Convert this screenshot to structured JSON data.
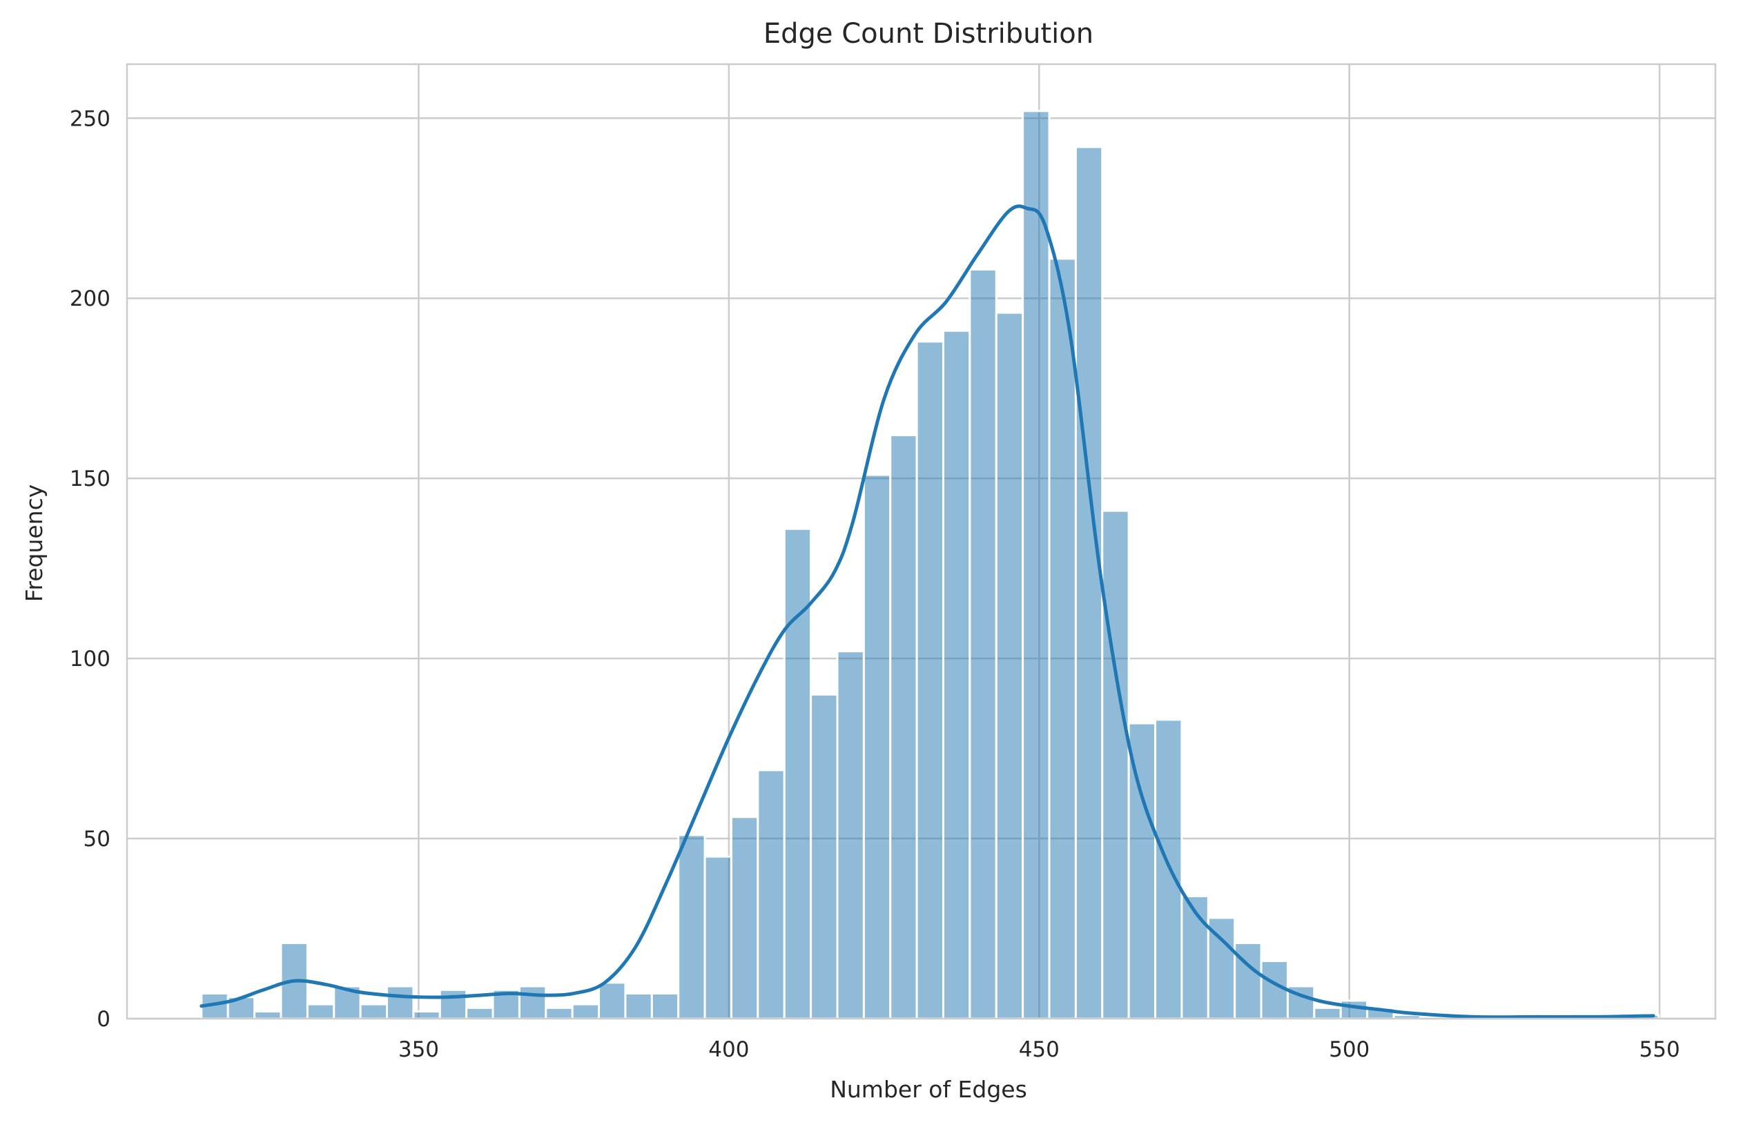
{
  "chart_data": {
    "type": "bar",
    "title": "Edge Count Distribution",
    "xlabel": "Number of Edges",
    "ylabel": "Frequency",
    "xlim": [
      303,
      559
    ],
    "ylim": [
      0,
      265
    ],
    "x_ticks": [
      350,
      400,
      450,
      500,
      550
    ],
    "y_ticks": [
      0,
      50,
      100,
      150,
      200,
      250
    ],
    "grid": true,
    "legend": "none",
    "series": [
      {
        "kind": "histogram",
        "bin_start": 315,
        "bin_width": 4.27,
        "values": [
          7,
          6,
          2,
          21,
          4,
          9,
          4,
          9,
          2,
          8,
          3,
          8,
          9,
          3,
          4,
          10,
          7,
          7,
          51,
          45,
          56,
          69,
          136,
          90,
          102,
          151,
          162,
          188,
          191,
          208,
          196,
          252,
          211,
          242,
          141,
          82,
          83,
          34,
          28,
          21,
          16,
          9,
          3,
          5,
          3,
          1,
          0,
          0,
          0,
          0,
          0,
          0,
          0,
          0,
          1
        ]
      },
      {
        "kind": "kde",
        "x": [
          315,
          320,
          325,
          330,
          335,
          340,
          345,
          350,
          355,
          360,
          365,
          370,
          375,
          380,
          385,
          390,
          395,
          400,
          405,
          409,
          413,
          417,
          420,
          425,
          430,
          435,
          440,
          445,
          448,
          451,
          455,
          460,
          465,
          470,
          475,
          480,
          485,
          490,
          495,
          500,
          505,
          510,
          520,
          530,
          540,
          549
        ],
        "y": [
          3.5,
          5,
          8,
          10.5,
          9.5,
          7.5,
          6.5,
          6,
          6,
          6.5,
          7,
          6.5,
          7,
          10,
          20,
          38,
          58,
          78,
          96,
          108,
          115,
          124,
          138,
          172,
          190,
          199,
          212,
          224,
          225,
          220,
          190,
          122,
          72,
          46,
          30,
          21,
          13,
          8,
          5,
          3.5,
          2.5,
          1.5,
          0.5,
          0.5,
          0.5,
          0.8
        ]
      }
    ],
    "colors": {
      "bar_fill": "#1f77b4",
      "bar_opacity": "0.5",
      "kde_line": "#1f77b4",
      "grid": "#cccccc"
    }
  }
}
